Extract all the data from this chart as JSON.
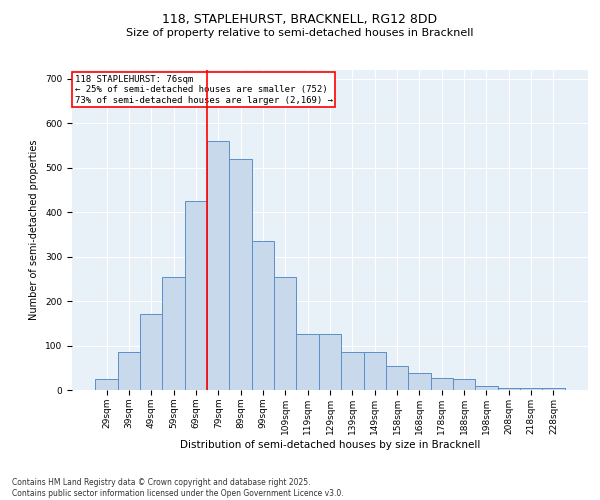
{
  "title1": "118, STAPLEHURST, BRACKNELL, RG12 8DD",
  "title2": "Size of property relative to semi-detached houses in Bracknell",
  "xlabel": "Distribution of semi-detached houses by size in Bracknell",
  "ylabel": "Number of semi-detached properties",
  "categories": [
    "29sqm",
    "39sqm",
    "49sqm",
    "59sqm",
    "69sqm",
    "79sqm",
    "89sqm",
    "99sqm",
    "109sqm",
    "119sqm",
    "129sqm",
    "139sqm",
    "149sqm",
    "158sqm",
    "168sqm",
    "178sqm",
    "188sqm",
    "198sqm",
    "208sqm",
    "218sqm",
    "228sqm"
  ],
  "values": [
    25,
    85,
    170,
    255,
    425,
    560,
    520,
    335,
    255,
    125,
    125,
    85,
    85,
    55,
    38,
    28,
    25,
    10,
    5,
    5,
    5
  ],
  "bar_color": "#c9d9ec",
  "bar_edge_color": "#5b8fc9",
  "vline_x": 4.5,
  "annotation_text": "118 STAPLEHURST: 76sqm\n← 25% of semi-detached houses are smaller (752)\n73% of semi-detached houses are larger (2,169) →",
  "annotation_box_color": "white",
  "annotation_box_edge_color": "red",
  "vline_color": "red",
  "ylim": [
    0,
    720
  ],
  "yticks": [
    0,
    100,
    200,
    300,
    400,
    500,
    600,
    700
  ],
  "background_color": "#e8f0f8",
  "grid_color": "white",
  "footer1": "Contains HM Land Registry data © Crown copyright and database right 2025.",
  "footer2": "Contains public sector information licensed under the Open Government Licence v3.0.",
  "title1_fontsize": 9,
  "title2_fontsize": 8,
  "xlabel_fontsize": 7.5,
  "ylabel_fontsize": 7,
  "tick_fontsize": 6.5,
  "annotation_fontsize": 6.5,
  "footer_fontsize": 5.5
}
